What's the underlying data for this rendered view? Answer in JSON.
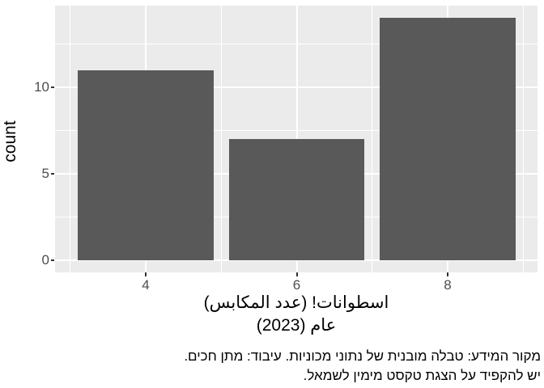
{
  "chart_data": {
    "type": "bar",
    "categories": [
      4,
      6,
      8
    ],
    "values": [
      11,
      7,
      14
    ],
    "title": "",
    "ylabel": "count",
    "xlabel_line1": "اسطوانات! (عدد المكابس)",
    "xlabel_line2": "عام (2023)",
    "caption_line1": "מקור המידע: טבלה מובנית של נתוני מכוניות. עיבוד: מתן חכים.",
    "caption_line2": "יש להקפיד על הצגת טקסט מימין לשמאל.",
    "yticks": [
      0,
      5,
      10
    ],
    "ytick_labels": [
      "0",
      "5",
      "10"
    ],
    "xticks": [
      4,
      6,
      8
    ],
    "xtick_labels": [
      "4",
      "6",
      "8"
    ],
    "ylim": [
      0,
      14.7
    ],
    "xlim": [
      2.8,
      9.2
    ],
    "bar_width_units": 1.8,
    "grid": "major and minor, white on grey panel",
    "legend": "none"
  },
  "colors": {
    "bar_fill": "#595959",
    "panel_bg": "#EBEBEB",
    "gridline": "#FFFFFF",
    "tick_mark": "#333333",
    "tick_label": "#4D4D4D",
    "axis_title": "#000000",
    "background": "#FFFFFF"
  }
}
